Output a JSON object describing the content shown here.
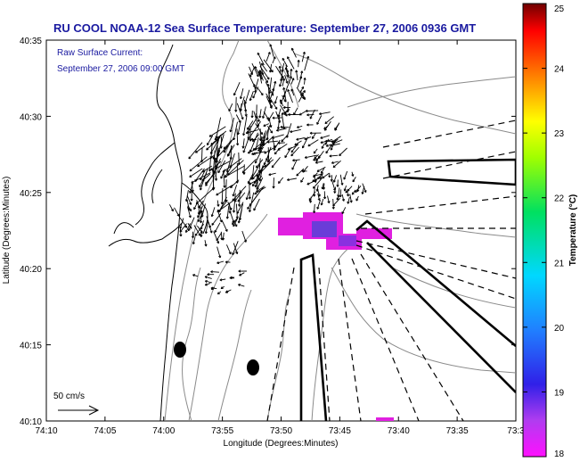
{
  "title": "RU COOL  NOAA-12  Sea Surface Temperature:  September 27, 2006 0936 GMT",
  "overlay_line1": "Raw Surface Current:",
  "overlay_line2": "September 27, 2006 09:00 GMT",
  "scale_label": "50 cm/s",
  "xlabel": "Longitude (Degrees:Minutes)",
  "ylabel": "Latitude (Degrees:Minutes)",
  "colorbar_label": "Temperature (°C)",
  "x_ticks": [
    "74:10",
    "74:05",
    "74:00",
    "73:55",
    "73:50",
    "73:45",
    "73:40",
    "73:35",
    "73:3"
  ],
  "y_ticks": [
    "40:35",
    "40:30",
    "40:25",
    "40:20",
    "40:15",
    "40:10"
  ],
  "colorbar_ticks": [
    "25",
    "24",
    "23",
    "22",
    "21",
    "20",
    "19",
    "18"
  ],
  "colorbar": {
    "min": 18,
    "max": 25
  },
  "colors": {
    "title_text": "#1a1aa0",
    "sst_patch": "#e020e0",
    "sst_core": "#6a3cd8"
  },
  "map_features": [
    "coastline",
    "bathymetry-contours",
    "surface-current-vectors",
    "sst-patch",
    "radial-sectors",
    "buoy-markers"
  ]
}
